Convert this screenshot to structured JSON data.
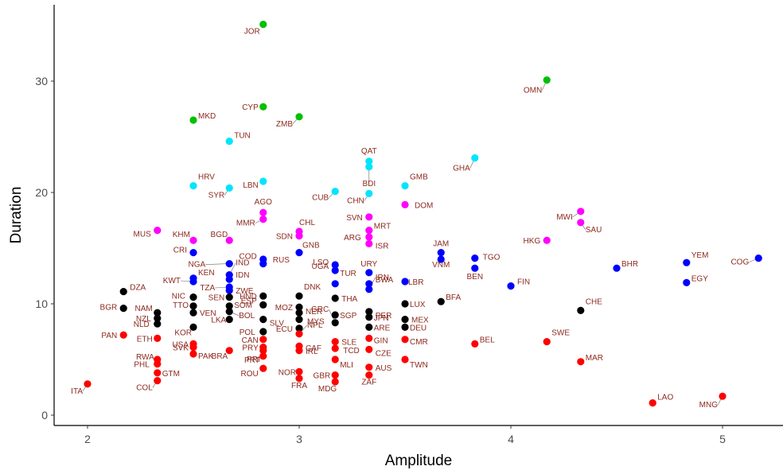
{
  "chart_data": {
    "type": "scatter",
    "title": "",
    "xlabel": "Amplitude",
    "ylabel": "Duration",
    "xlim": [
      1.85,
      5.3
    ],
    "ylim": [
      -0.8,
      37
    ],
    "x_ticks": [
      "2",
      "3",
      "4",
      "5"
    ],
    "y_ticks": [
      "0",
      "10",
      "20",
      "30"
    ],
    "grid": false,
    "legend": "none",
    "colors": {
      "green": "#00c000",
      "cyan": "#00e5ff",
      "magenta": "#ff00ff",
      "blue": "#0000ff",
      "black": "#000000",
      "red": "#ff0000",
      "label": "#8b2a1f",
      "axis": "#000000",
      "tick_text": "#4d4d4d"
    },
    "points": [
      {
        "label": "JOR",
        "x": 2.83,
        "y": 35.1,
        "color": "green"
      },
      {
        "label": "OMN",
        "x": 4.17,
        "y": 30.1,
        "color": "green"
      },
      {
        "label": "CYP",
        "x": 2.83,
        "y": 27.7,
        "color": "green"
      },
      {
        "label": "ZMB",
        "x": 3.0,
        "y": 26.8,
        "color": "green"
      },
      {
        "label": "MKD",
        "x": 2.5,
        "y": 26.5,
        "color": "green"
      },
      {
        "label": "TUN",
        "x": 2.67,
        "y": 24.6,
        "color": "cyan"
      },
      {
        "label": "GHA",
        "x": 3.83,
        "y": 23.1,
        "color": "cyan"
      },
      {
        "label": "QAT",
        "x": 3.33,
        "y": 22.8,
        "color": "cyan"
      },
      {
        "label": "BDI",
        "x": 3.33,
        "y": 22.3,
        "color": "cyan"
      },
      {
        "label": "HRV",
        "x": 2.5,
        "y": 20.6,
        "color": "cyan"
      },
      {
        "label": "GMB",
        "x": 3.5,
        "y": 20.6,
        "color": "cyan"
      },
      {
        "label": "SYR",
        "x": 2.67,
        "y": 20.4,
        "color": "cyan"
      },
      {
        "label": "LBN",
        "x": 2.83,
        "y": 21.0,
        "color": "cyan"
      },
      {
        "label": "CUB",
        "x": 3.17,
        "y": 20.1,
        "color": "cyan"
      },
      {
        "label": "CHN",
        "x": 3.33,
        "y": 19.9,
        "color": "cyan"
      },
      {
        "label": "DOM",
        "x": 3.5,
        "y": 18.9,
        "color": "magenta"
      },
      {
        "label": "MWI",
        "x": 4.33,
        "y": 18.3,
        "color": "magenta"
      },
      {
        "label": "AGO",
        "x": 2.83,
        "y": 18.2,
        "color": "magenta"
      },
      {
        "label": "MMR",
        "x": 2.83,
        "y": 17.6,
        "color": "magenta"
      },
      {
        "label": "SVN",
        "x": 3.33,
        "y": 17.8,
        "color": "magenta"
      },
      {
        "label": "SAU",
        "x": 4.33,
        "y": 17.3,
        "color": "magenta"
      },
      {
        "label": "MUS",
        "x": 2.33,
        "y": 16.6,
        "color": "magenta"
      },
      {
        "label": "MRT",
        "x": 3.33,
        "y": 16.6,
        "color": "magenta"
      },
      {
        "label": "CHL",
        "x": 3.0,
        "y": 16.5,
        "color": "magenta"
      },
      {
        "label": "SDN",
        "x": 3.0,
        "y": 16.1,
        "color": "magenta"
      },
      {
        "label": "ARG",
        "x": 3.33,
        "y": 16.0,
        "color": "magenta"
      },
      {
        "label": "KHM",
        "x": 2.5,
        "y": 15.7,
        "color": "magenta"
      },
      {
        "label": "BGD",
        "x": 2.67,
        "y": 15.7,
        "color": "magenta"
      },
      {
        "label": "HKG",
        "x": 4.17,
        "y": 15.7,
        "color": "magenta"
      },
      {
        "label": "ISR",
        "x": 3.33,
        "y": 15.4,
        "color": "magenta"
      },
      {
        "label": "CRI",
        "x": 2.5,
        "y": 14.6,
        "color": "blue"
      },
      {
        "label": "JAM",
        "x": 3.67,
        "y": 14.6,
        "color": "blue"
      },
      {
        "label": "GNB",
        "x": 3.0,
        "y": 14.6,
        "color": "blue"
      },
      {
        "label": "TGO",
        "x": 3.83,
        "y": 14.1,
        "color": "blue"
      },
      {
        "label": "COG",
        "x": 5.17,
        "y": 14.1,
        "color": "blue"
      },
      {
        "label": "VNM",
        "x": 3.67,
        "y": 14.0,
        "color": "blue"
      },
      {
        "label": "RUS",
        "x": 2.83,
        "y": 14.0,
        "color": "blue"
      },
      {
        "label": "YEM",
        "x": 4.83,
        "y": 13.7,
        "color": "blue"
      },
      {
        "label": "NGA",
        "x": 2.67,
        "y": 13.6,
        "color": "blue"
      },
      {
        "label": "COD",
        "x": 2.83,
        "y": 13.6,
        "color": "blue"
      },
      {
        "label": "LSO",
        "x": 3.17,
        "y": 13.5,
        "color": "blue"
      },
      {
        "label": "URY",
        "x": 3.33,
        "y": 12.8,
        "color": "blue"
      },
      {
        "label": "BHR",
        "x": 4.5,
        "y": 13.2,
        "color": "blue"
      },
      {
        "label": "BEN",
        "x": 3.83,
        "y": 13.2,
        "color": "blue"
      },
      {
        "label": "UGA",
        "x": 3.17,
        "y": 13.0,
        "color": "blue"
      },
      {
        "label": "KEN",
        "x": 2.5,
        "y": 12.3,
        "color": "blue"
      },
      {
        "label": "IND",
        "x": 2.67,
        "y": 12.6,
        "color": "blue"
      },
      {
        "label": "KWT",
        "x": 2.5,
        "y": 12.0,
        "color": "blue"
      },
      {
        "label": "IDN",
        "x": 2.67,
        "y": 12.2,
        "color": "blue"
      },
      {
        "label": "LBR",
        "x": 3.5,
        "y": 12.0,
        "color": "blue"
      },
      {
        "label": "BWA",
        "x": 3.33,
        "y": 11.8,
        "color": "blue"
      },
      {
        "label": "EGY",
        "x": 4.83,
        "y": 11.9,
        "color": "blue"
      },
      {
        "label": "TZA",
        "x": 2.67,
        "y": 11.5,
        "color": "blue"
      },
      {
        "label": "FIN",
        "x": 4.0,
        "y": 11.6,
        "color": "blue"
      },
      {
        "label": "ZWE",
        "x": 2.67,
        "y": 11.2,
        "color": "blue"
      },
      {
        "label": "TUR",
        "x": 3.17,
        "y": 11.8,
        "color": "blue"
      },
      {
        "label": "IRN",
        "x": 3.33,
        "y": 11.3,
        "color": "blue"
      },
      {
        "label": "DZA",
        "x": 2.17,
        "y": 11.1,
        "color": "black"
      },
      {
        "label": "NIC",
        "x": 2.5,
        "y": 10.6,
        "color": "black"
      },
      {
        "label": "SEN",
        "x": 2.67,
        "y": 10.6,
        "color": "black"
      },
      {
        "label": "HND",
        "x": 2.83,
        "y": 10.7,
        "color": "black"
      },
      {
        "label": "DNK",
        "x": 3.0,
        "y": 10.7,
        "color": "black"
      },
      {
        "label": "THA",
        "x": 3.17,
        "y": 10.5,
        "color": "black"
      },
      {
        "label": "BFA",
        "x": 3.67,
        "y": 10.2,
        "color": "black"
      },
      {
        "label": "BGR",
        "x": 2.17,
        "y": 9.6,
        "color": "black"
      },
      {
        "label": "LUX",
        "x": 3.5,
        "y": 10.0,
        "color": "black"
      },
      {
        "label": "NAM",
        "x": 2.33,
        "y": 9.2,
        "color": "black"
      },
      {
        "label": "TTO",
        "x": 2.5,
        "y": 9.8,
        "color": "black"
      },
      {
        "label": "VEN",
        "x": 2.5,
        "y": 9.2,
        "color": "black"
      },
      {
        "label": "SOM",
        "x": 2.67,
        "y": 9.8,
        "color": "black"
      },
      {
        "label": "ESP",
        "x": 2.83,
        "y": 9.9,
        "color": "black"
      },
      {
        "label": "MOZ",
        "x": 3.0,
        "y": 9.7,
        "color": "black"
      },
      {
        "label": "NER",
        "x": 3.0,
        "y": 9.2,
        "color": "black"
      },
      {
        "label": "PER",
        "x": 3.33,
        "y": 9.3,
        "color": "black"
      },
      {
        "label": "CHE",
        "x": 4.33,
        "y": 9.4,
        "color": "black"
      },
      {
        "label": "NZL",
        "x": 2.33,
        "y": 8.7,
        "color": "black"
      },
      {
        "label": "BOL",
        "x": 2.67,
        "y": 9.3,
        "color": "black"
      },
      {
        "label": "SLV",
        "x": 2.83,
        "y": 8.6,
        "color": "black"
      },
      {
        "label": "SGP",
        "x": 3.17,
        "y": 9.0,
        "color": "black"
      },
      {
        "label": "MYS",
        "x": 3.0,
        "y": 8.6,
        "color": "black"
      },
      {
        "label": "JPN",
        "x": 3.33,
        "y": 8.8,
        "color": "black"
      },
      {
        "label": "MEX",
        "x": 3.5,
        "y": 8.6,
        "color": "black"
      },
      {
        "label": "NLD",
        "x": 2.33,
        "y": 8.2,
        "color": "black"
      },
      {
        "label": "LKA",
        "x": 2.67,
        "y": 8.6,
        "color": "black"
      },
      {
        "label": "KOR",
        "x": 2.5,
        "y": 7.9,
        "color": "black"
      },
      {
        "label": "ARE",
        "x": 3.33,
        "y": 7.9,
        "color": "black"
      },
      {
        "label": "ECU",
        "x": 3.0,
        "y": 7.8,
        "color": "black"
      },
      {
        "label": "GRC",
        "x": 3.17,
        "y": 8.3,
        "color": "black"
      },
      {
        "label": "POL",
        "x": 2.83,
        "y": 7.5,
        "color": "black"
      },
      {
        "label": "DEU",
        "x": 3.5,
        "y": 7.9,
        "color": "black"
      },
      {
        "label": "PAN",
        "x": 2.17,
        "y": 7.2,
        "color": "red"
      },
      {
        "label": "ETH",
        "x": 2.33,
        "y": 6.9,
        "color": "red"
      },
      {
        "label": "USA",
        "x": 2.5,
        "y": 6.4,
        "color": "red"
      },
      {
        "label": "NPL",
        "x": 3.0,
        "y": 7.3,
        "color": "red"
      },
      {
        "label": "BEL",
        "x": 3.83,
        "y": 6.4,
        "color": "red"
      },
      {
        "label": "SWE",
        "x": 4.17,
        "y": 6.6,
        "color": "red"
      },
      {
        "label": "SLE",
        "x": 3.17,
        "y": 6.6,
        "color": "red"
      },
      {
        "label": "CAN",
        "x": 2.83,
        "y": 6.8,
        "color": "red"
      },
      {
        "label": "GIN",
        "x": 3.33,
        "y": 6.9,
        "color": "red"
      },
      {
        "label": "PRY",
        "x": 2.83,
        "y": 6.1,
        "color": "red"
      },
      {
        "label": "CAF",
        "x": 3.0,
        "y": 6.2,
        "color": "red"
      },
      {
        "label": "SVK",
        "x": 2.5,
        "y": 6.1,
        "color": "red"
      },
      {
        "label": "CMR",
        "x": 3.5,
        "y": 6.8,
        "color": "red"
      },
      {
        "label": "TCD",
        "x": 3.17,
        "y": 6.0,
        "color": "red"
      },
      {
        "label": "CZE",
        "x": 3.33,
        "y": 5.9,
        "color": "red"
      },
      {
        "label": "RWA",
        "x": 2.33,
        "y": 5.0,
        "color": "red"
      },
      {
        "label": "PRI",
        "x": 2.83,
        "y": 5.8,
        "color": "red"
      },
      {
        "label": "IRL",
        "x": 3.0,
        "y": 5.8,
        "color": "red"
      },
      {
        "label": "MAR",
        "x": 4.33,
        "y": 4.8,
        "color": "red"
      },
      {
        "label": "PAK",
        "x": 2.5,
        "y": 5.5,
        "color": "red"
      },
      {
        "label": "BRA",
        "x": 2.67,
        "y": 5.8,
        "color": "red"
      },
      {
        "label": "PRT",
        "x": 2.83,
        "y": 5.3,
        "color": "red"
      },
      {
        "label": "MLI",
        "x": 3.17,
        "y": 5.0,
        "color": "red"
      },
      {
        "label": "TWN",
        "x": 3.5,
        "y": 5.0,
        "color": "red"
      },
      {
        "label": "PHL",
        "x": 2.33,
        "y": 4.6,
        "color": "red"
      },
      {
        "label": "AUS",
        "x": 3.33,
        "y": 4.3,
        "color": "red"
      },
      {
        "label": "NOR",
        "x": 3.0,
        "y": 3.9,
        "color": "red"
      },
      {
        "label": "ROU",
        "x": 2.83,
        "y": 4.2,
        "color": "red"
      },
      {
        "label": "GTM",
        "x": 2.33,
        "y": 3.8,
        "color": "red"
      },
      {
        "label": "GBR",
        "x": 3.17,
        "y": 3.6,
        "color": "red"
      },
      {
        "label": "ZAF",
        "x": 3.33,
        "y": 3.6,
        "color": "red"
      },
      {
        "label": "COL",
        "x": 2.33,
        "y": 3.1,
        "color": "red"
      },
      {
        "label": "FRA",
        "x": 3.0,
        "y": 3.3,
        "color": "red"
      },
      {
        "label": "MDG",
        "x": 3.17,
        "y": 3.0,
        "color": "red"
      },
      {
        "label": "ITA",
        "x": 2.0,
        "y": 2.8,
        "color": "red"
      },
      {
        "label": "MNG",
        "x": 5.0,
        "y": 1.7,
        "color": "red"
      },
      {
        "label": "LAO",
        "x": 4.67,
        "y": 1.1,
        "color": "red"
      }
    ]
  }
}
